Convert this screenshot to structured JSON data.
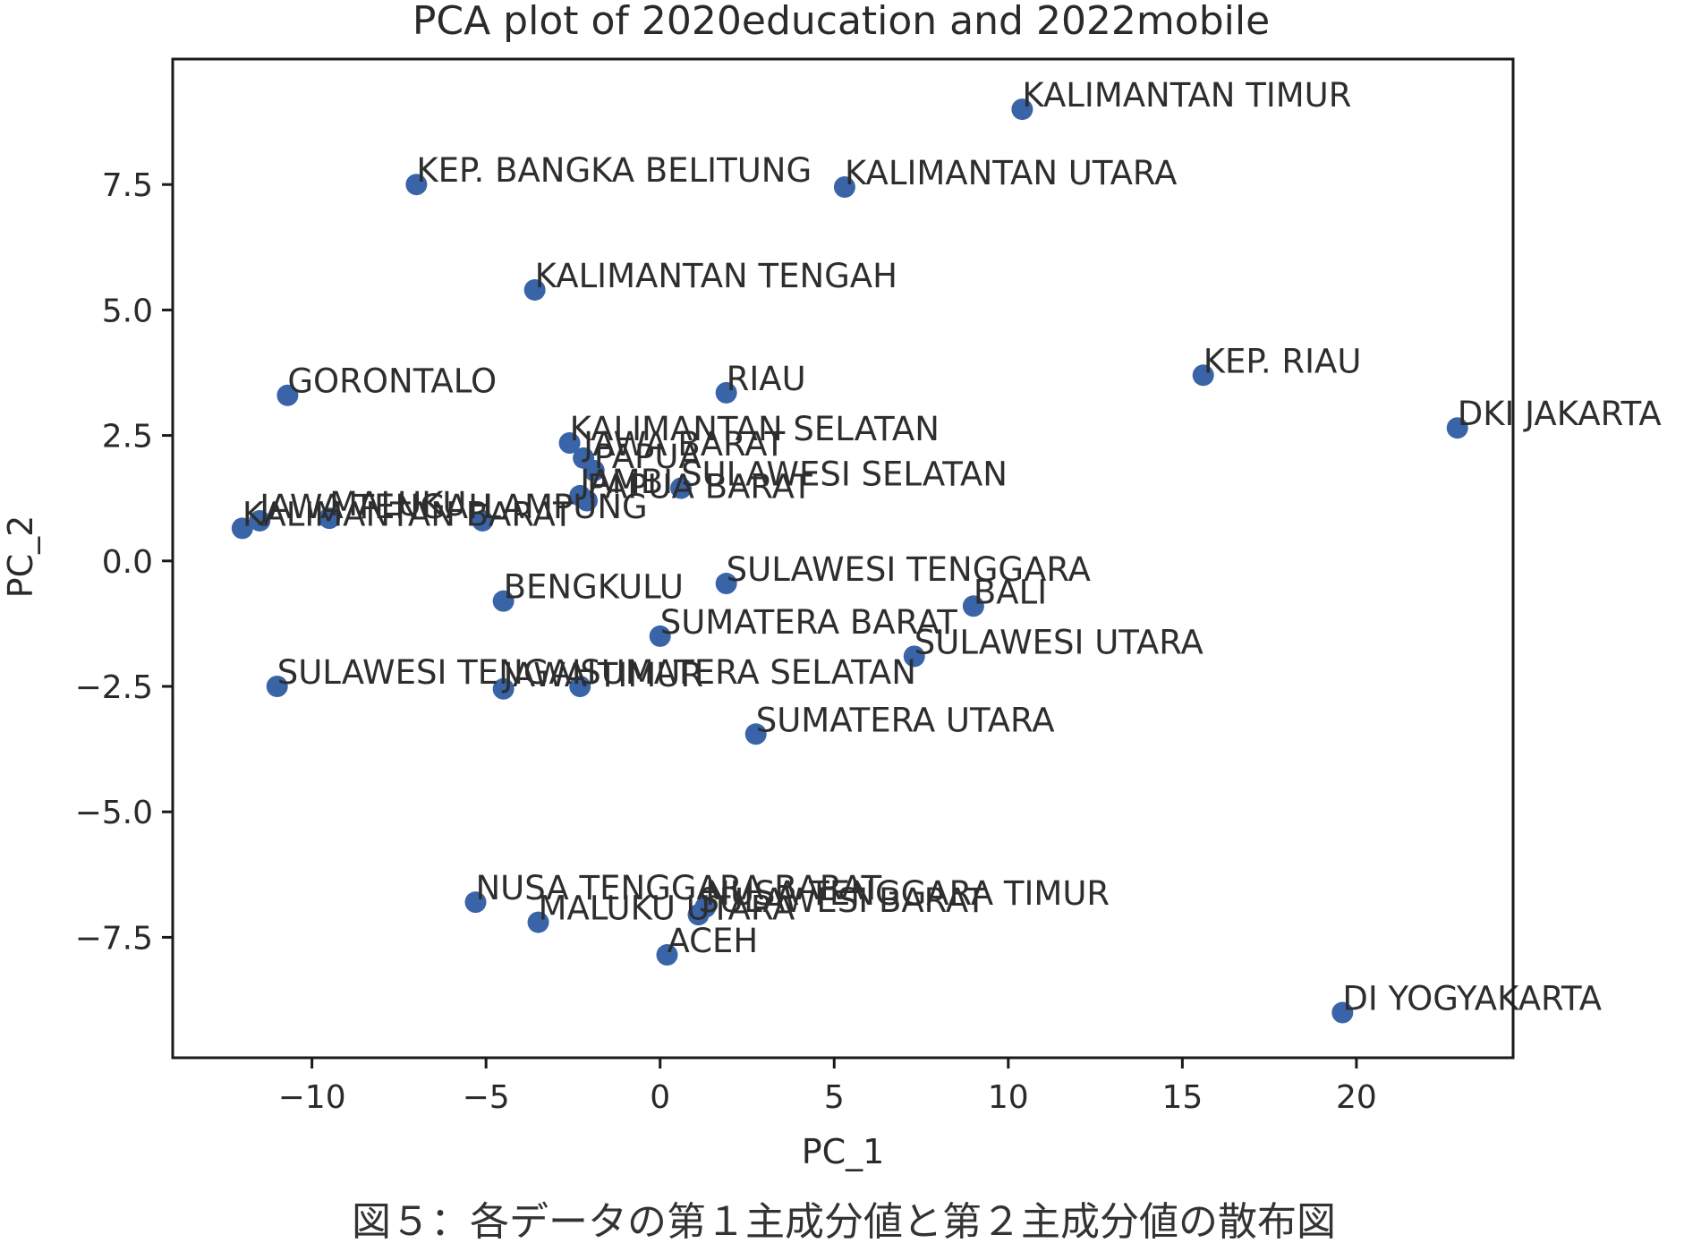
{
  "chart_data": {
    "type": "scatter",
    "title": "PCA plot of 2020education and 2022mobile",
    "xlabel": "PC_1",
    "ylabel": "PC_2",
    "xlim": [
      -14,
      24.5
    ],
    "ylim": [
      -9.9,
      10
    ],
    "xticks": [
      -10,
      -5,
      0,
      5,
      10,
      15,
      20
    ],
    "xtick_labels": [
      "−10",
      "−5",
      "0",
      "5",
      "10",
      "15",
      "20"
    ],
    "yticks": [
      -7.5,
      -5.0,
      -2.5,
      0.0,
      2.5,
      5.0,
      7.5
    ],
    "ytick_labels": [
      "−7.5",
      "−5.0",
      "−2.5",
      "0.0",
      "2.5",
      "5.0",
      "7.5"
    ],
    "grid": false,
    "marker_color": "#3a64a8",
    "points": [
      {
        "label": "KALIMANTAN TIMUR",
        "x": 10.4,
        "y": 9.0
      },
      {
        "label": "KEP. BANGKA BELITUNG",
        "x": -7.0,
        "y": 7.5
      },
      {
        "label": "KALIMANTAN UTARA",
        "x": 5.3,
        "y": 7.45
      },
      {
        "label": "KALIMANTAN TENGAH",
        "x": -3.6,
        "y": 5.4
      },
      {
        "label": "GORONTALO",
        "x": -10.7,
        "y": 3.3
      },
      {
        "label": "RIAU",
        "x": 1.9,
        "y": 3.35
      },
      {
        "label": "KEP. RIAU",
        "x": 15.6,
        "y": 3.7
      },
      {
        "label": "DKI JAKARTA",
        "x": 22.9,
        "y": 2.65
      },
      {
        "label": "KALIMANTAN SELATAN",
        "x": -2.6,
        "y": 2.35
      },
      {
        "label": "JAWA BARAT",
        "x": -2.2,
        "y": 2.05
      },
      {
        "label": "PAPUA",
        "x": -1.9,
        "y": 1.8
      },
      {
        "label": "JAMBI",
        "x": -2.3,
        "y": 1.3
      },
      {
        "label": "SULAWESI SELATAN",
        "x": 0.6,
        "y": 1.45
      },
      {
        "label": "PAPUA BARAT",
        "x": -2.1,
        "y": 1.2
      },
      {
        "label": "KALIMANTAN BARAT",
        "x": -12.0,
        "y": 0.65
      },
      {
        "label": "JAWA TENGAH",
        "x": -11.5,
        "y": 0.8
      },
      {
        "label": "MALUKU",
        "x": -9.5,
        "y": 0.85
      },
      {
        "label": "LAMPUNG",
        "x": -5.1,
        "y": 0.8
      },
      {
        "label": "SULAWESI TENGGARA",
        "x": 1.9,
        "y": -0.45
      },
      {
        "label": "BENGKULU",
        "x": -4.5,
        "y": -0.8
      },
      {
        "label": "BALI",
        "x": 9.0,
        "y": -0.9
      },
      {
        "label": "SUMATERA BARAT",
        "x": 0.0,
        "y": -1.5
      },
      {
        "label": "SULAWESI UTARA",
        "x": 7.3,
        "y": -1.9
      },
      {
        "label": "SULAWESI TENGAH",
        "x": -11.0,
        "y": -2.5
      },
      {
        "label": "JAWA TIMUR",
        "x": -4.5,
        "y": -2.55
      },
      {
        "label": "SUMATERA SELATAN",
        "x": -2.3,
        "y": -2.5
      },
      {
        "label": "SUMATERA UTARA",
        "x": 2.75,
        "y": -3.45
      },
      {
        "label": "NUSA TENGGARA BARAT",
        "x": -5.3,
        "y": -6.8
      },
      {
        "label": "NUSA TENGGARA TIMUR",
        "x": 1.3,
        "y": -6.9
      },
      {
        "label": "MALUKU UTARA",
        "x": -3.5,
        "y": -7.2
      },
      {
        "label": "SULAWESI BARAT",
        "x": 1.1,
        "y": -7.05
      },
      {
        "label": "ACEH",
        "x": 0.2,
        "y": -7.85
      },
      {
        "label": "DI YOGYAKARTA",
        "x": 19.6,
        "y": -9.0
      }
    ]
  },
  "caption": "図５：各データの第１主成分値と第２主成分値の散布図"
}
